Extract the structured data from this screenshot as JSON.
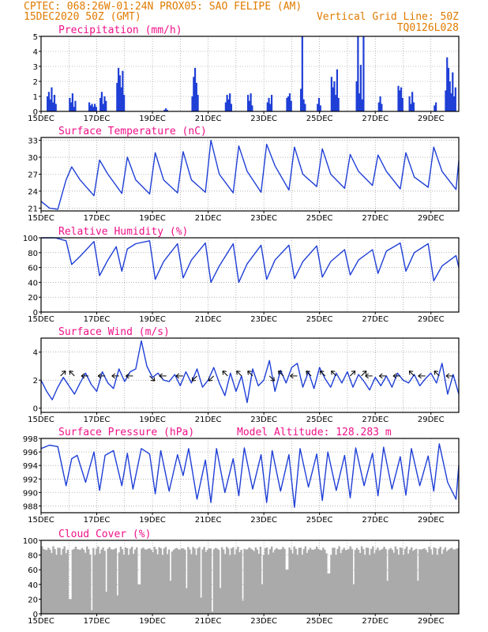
{
  "header": {
    "line1": "CPTEC:   068:26W-01:24N   PROX05: SAO FELIPE (AM)",
    "line2_left": "15DEC2020 50Z (GMT)",
    "line2_right": "Vertical Grid Line: 50Z",
    "line3_right": "TQ0126L028"
  },
  "colors": {
    "series": "#1f3fd6",
    "title": "#ee1188",
    "header": "#e07b00",
    "cloud": "#aaaaaa"
  },
  "chart_data": [
    {
      "type": "bar",
      "title": "Precipitation (mm/h)",
      "ylim": [
        0,
        5
      ],
      "yticks": [
        "0",
        "1",
        "2",
        "3",
        "4",
        "5"
      ],
      "xticks": [
        "15DEC",
        "17DEC",
        "19DEC",
        "21DEC",
        "23DEC",
        "25DEC",
        "27DEC",
        "29DEC"
      ],
      "x_range_days": [
        15,
        30
      ],
      "events": [
        {
          "day": 15.2,
          "values": [
            1.0,
            1.3,
            0.8,
            1.6,
            0.6,
            1.1,
            0.5
          ]
        },
        {
          "day": 16.0,
          "values": [
            0.9,
            0.6,
            1.2,
            0.3,
            0.7
          ]
        },
        {
          "day": 16.7,
          "values": [
            0.6,
            0.4,
            0.5,
            0.3,
            0.5,
            0.3
          ]
        },
        {
          "day": 17.1,
          "values": [
            0.9,
            1.3,
            0.5,
            1.0,
            0.7
          ]
        },
        {
          "day": 17.7,
          "values": [
            1.9,
            2.9,
            2.4,
            1.6,
            2.7,
            1.1
          ]
        },
        {
          "day": 19.4,
          "values": [
            0.1,
            0.2,
            0.1
          ]
        },
        {
          "day": 20.4,
          "values": [
            1.0,
            2.3,
            2.9,
            1.9,
            1.1
          ]
        },
        {
          "day": 21.6,
          "values": [
            0.6,
            1.1,
            0.8,
            1.2,
            0.5
          ]
        },
        {
          "day": 22.4,
          "values": [
            1.1,
            0.7,
            1.2,
            0.4
          ]
        },
        {
          "day": 23.1,
          "values": [
            0.6,
            0.9,
            0.5,
            1.1
          ]
        },
        {
          "day": 23.8,
          "values": [
            0.9,
            1.0,
            1.2,
            0.7
          ]
        },
        {
          "day": 24.3,
          "values": [
            1.5,
            5.0,
            0.8,
            0.5
          ]
        },
        {
          "day": 24.9,
          "values": [
            0.5,
            0.9,
            0.4
          ]
        },
        {
          "day": 25.4,
          "values": [
            2.3,
            1.6,
            2.0,
            1.1,
            2.8,
            0.9
          ]
        },
        {
          "day": 26.3,
          "values": [
            2.0,
            5.0,
            1.2,
            3.1,
            0.8,
            5.0
          ]
        },
        {
          "day": 27.1,
          "values": [
            0.6,
            1.0,
            0.5
          ]
        },
        {
          "day": 27.8,
          "values": [
            1.7,
            1.4,
            1.6,
            0.9
          ]
        },
        {
          "day": 28.2,
          "values": [
            1.0,
            0.5,
            1.3,
            0.6
          ]
        },
        {
          "day": 29.1,
          "values": [
            0.4,
            0.6
          ]
        },
        {
          "day": 29.5,
          "values": [
            1.4,
            3.6,
            2.9,
            2.0,
            1.2,
            2.6,
            1.0,
            1.6
          ]
        }
      ]
    },
    {
      "type": "line",
      "title": "Surface Temperature (nC)",
      "ylim": [
        20.5,
        33.5
      ],
      "yticks": [
        "21",
        "24",
        "27",
        "30",
        "33"
      ],
      "xticks": [
        "15DEC",
        "17DEC",
        "19DEC",
        "21DEC",
        "23DEC",
        "25DEC",
        "27DEC",
        "29DEC"
      ],
      "x_range_days": [
        15,
        30
      ],
      "series": [
        {
          "days": [
            15,
            15.3,
            15.6,
            15.9,
            16.1,
            16.4,
            16.9,
            17.1,
            17.4,
            17.9,
            18.1,
            18.4,
            18.9,
            19.1,
            19.4,
            19.9,
            20.1,
            20.4,
            20.9,
            21.1,
            21.4,
            21.9,
            22.1,
            22.4,
            22.9,
            23.1,
            23.4,
            23.9,
            24.1,
            24.4,
            24.9,
            25.1,
            25.4,
            25.9,
            26.1,
            26.4,
            26.9,
            27.1,
            27.4,
            27.9,
            28.1,
            28.4,
            28.9,
            29.1,
            29.4,
            29.9,
            30
          ],
          "values": [
            22.2,
            21,
            20.8,
            26,
            28.3,
            26,
            23.2,
            29.5,
            27,
            23.6,
            30,
            26,
            23.5,
            30.8,
            26,
            23.7,
            31,
            26,
            23.8,
            33,
            27,
            23.7,
            32,
            27.5,
            23.8,
            32.3,
            28.5,
            24.2,
            31.8,
            27,
            24.8,
            31.5,
            27,
            24.5,
            30.5,
            27.5,
            25,
            30.4,
            27.5,
            24.4,
            30.8,
            26.5,
            24.7,
            31.8,
            27.5,
            24.3,
            29.4
          ]
        }
      ]
    },
    {
      "type": "line",
      "title": "Relative Humidity (%)",
      "ylim": [
        0,
        100
      ],
      "yticks": [
        "0",
        "20",
        "40",
        "60",
        "80",
        "100"
      ],
      "xticks": [
        "15DEC",
        "17DEC",
        "19DEC",
        "21DEC",
        "23DEC",
        "25DEC",
        "27DEC",
        "29DEC"
      ],
      "x_range_days": [
        15,
        30
      ],
      "series": [
        {
          "days": [
            15,
            15.5,
            15.9,
            16.1,
            16.4,
            16.9,
            17.1,
            17.4,
            17.7,
            17.9,
            18.1,
            18.4,
            18.9,
            19.1,
            19.4,
            19.9,
            20.1,
            20.4,
            20.9,
            21.1,
            21.4,
            21.9,
            22.1,
            22.4,
            22.9,
            23.1,
            23.4,
            23.9,
            24.1,
            24.4,
            24.9,
            25.1,
            25.4,
            25.9,
            26.1,
            26.4,
            26.9,
            27.1,
            27.4,
            27.9,
            28.1,
            28.4,
            28.9,
            29.1,
            29.4,
            29.9,
            30
          ],
          "values": [
            100,
            100,
            96,
            64,
            75,
            95,
            49,
            70,
            88,
            55,
            85,
            92,
            96,
            44,
            68,
            92,
            46,
            70,
            93,
            40,
            62,
            92,
            40,
            65,
            90,
            44,
            70,
            90,
            45,
            68,
            89,
            47,
            68,
            84,
            50,
            70,
            84,
            52,
            82,
            93,
            55,
            80,
            92,
            42,
            62,
            76,
            60
          ]
        }
      ]
    },
    {
      "type": "line",
      "title": "Surface Wind (m/s)",
      "ylim": [
        -0.3,
        5
      ],
      "yticks": [
        "0",
        "2",
        "4"
      ],
      "xticks": [
        "15DEC",
        "17DEC",
        "19DEC",
        "21DEC",
        "23DEC",
        "25DEC",
        "27DEC",
        "29DEC"
      ],
      "x_range_days": [
        15,
        30
      ],
      "series": [
        {
          "days": [
            15,
            15.2,
            15.4,
            15.6,
            15.8,
            16.0,
            16.2,
            16.4,
            16.6,
            16.8,
            17.0,
            17.2,
            17.4,
            17.6,
            17.8,
            18.0,
            18.2,
            18.4,
            18.6,
            18.8,
            19.0,
            19.2,
            19.4,
            19.6,
            19.8,
            20.0,
            20.2,
            20.4,
            20.6,
            20.8,
            21.0,
            21.2,
            21.4,
            21.6,
            21.8,
            22.0,
            22.2,
            22.4,
            22.6,
            22.8,
            23.0,
            23.2,
            23.4,
            23.6,
            23.8,
            24.0,
            24.2,
            24.4,
            24.6,
            24.8,
            25.0,
            25.2,
            25.4,
            25.6,
            25.8,
            26.0,
            26.2,
            26.4,
            26.6,
            26.8,
            27.0,
            27.2,
            27.4,
            27.6,
            27.8,
            28.0,
            28.2,
            28.4,
            28.6,
            28.8,
            29.0,
            29.2,
            29.4,
            29.6,
            29.8,
            30
          ],
          "values": [
            2,
            1.2,
            0.6,
            1.5,
            2.2,
            1.6,
            1.0,
            1.8,
            2.5,
            1.7,
            1.2,
            2.6,
            1.8,
            1.4,
            2.8,
            1.9,
            2.6,
            2.8,
            4.8,
            3.0,
            2.2,
            2.5,
            2.0,
            1.9,
            2.4,
            1.6,
            2.6,
            1.8,
            2.8,
            1.5,
            2.0,
            2.9,
            1.8,
            0.9,
            2.5,
            1.2,
            2.3,
            0.4,
            2.8,
            1.6,
            2.0,
            3.4,
            1.2,
            2.7,
            1.8,
            2.9,
            3.2,
            1.5,
            2.6,
            1.4,
            2.9,
            2.1,
            1.5,
            2.5,
            1.8,
            2.6,
            1.5,
            2.4,
            1.9,
            1.3,
            2.2,
            1.6,
            2.3,
            1.5,
            2.5,
            2.0,
            1.8,
            2.4,
            1.6,
            2.1,
            2.5,
            1.8,
            3.2,
            1.0,
            2.4,
            1.0
          ]
        }
      ],
      "arrows": [
        {
          "day": 15.7,
          "dir": "ne"
        },
        {
          "day": 16.2,
          "dir": "nw"
        },
        {
          "day": 16.7,
          "dir": "w"
        },
        {
          "day": 17.3,
          "dir": "w"
        },
        {
          "day": 17.8,
          "dir": "w"
        },
        {
          "day": 18.3,
          "dir": "w"
        },
        {
          "day": 18.9,
          "dir": "se"
        },
        {
          "day": 19.5,
          "dir": "w"
        },
        {
          "day": 20.1,
          "dir": "w"
        },
        {
          "day": 20.6,
          "dir": "sw"
        },
        {
          "day": 21.2,
          "dir": "sw"
        },
        {
          "day": 21.7,
          "dir": "nw"
        },
        {
          "day": 22.2,
          "dir": "nw"
        },
        {
          "day": 22.6,
          "dir": "nw"
        },
        {
          "day": 23.2,
          "dir": "se"
        },
        {
          "day": 23.7,
          "dir": "nw"
        },
        {
          "day": 24.2,
          "dir": "w"
        },
        {
          "day": 24.7,
          "dir": "nw"
        },
        {
          "day": 25.2,
          "dir": "nw"
        },
        {
          "day": 25.6,
          "dir": "nw"
        },
        {
          "day": 26.1,
          "dir": "ne"
        },
        {
          "day": 26.5,
          "dir": "ne"
        },
        {
          "day": 26.9,
          "dir": "w"
        },
        {
          "day": 27.4,
          "dir": "w"
        },
        {
          "day": 27.9,
          "dir": "w"
        },
        {
          "day": 28.4,
          "dir": "nw"
        },
        {
          "day": 28.8,
          "dir": "w"
        },
        {
          "day": 29.3,
          "dir": "nw"
        },
        {
          "day": 29.8,
          "dir": "w"
        }
      ]
    },
    {
      "type": "line",
      "title": "Surface Pressure (hPa)",
      "annotation": "Model Altitude: 128.283 m",
      "ylim": [
        987,
        998
      ],
      "yticks": [
        "988",
        "990",
        "992",
        "994",
        "996",
        "998"
      ],
      "xticks": [
        "15DEC",
        "17DEC",
        "19DEC",
        "21DEC",
        "23DEC",
        "25DEC",
        "27DEC",
        "29DEC"
      ],
      "x_range_days": [
        15,
        30
      ],
      "series": [
        {
          "days": [
            15,
            15.3,
            15.6,
            15.9,
            16.1,
            16.3,
            16.6,
            16.9,
            17.1,
            17.3,
            17.6,
            17.9,
            18.1,
            18.3,
            18.6,
            18.9,
            19.1,
            19.3,
            19.6,
            19.9,
            20.1,
            20.3,
            20.6,
            20.9,
            21.1,
            21.3,
            21.6,
            21.9,
            22.1,
            22.3,
            22.6,
            22.9,
            23.1,
            23.3,
            23.6,
            23.9,
            24.1,
            24.3,
            24.6,
            24.9,
            25.1,
            25.3,
            25.6,
            25.9,
            26.1,
            26.3,
            26.6,
            26.9,
            27.1,
            27.3,
            27.6,
            27.9,
            28.1,
            28.3,
            28.6,
            28.9,
            29.1,
            29.3,
            29.6,
            29.9,
            30
          ],
          "values": [
            996.5,
            997,
            996.8,
            991,
            995,
            995.5,
            991.5,
            996,
            990.3,
            995.5,
            996.2,
            991,
            995.8,
            990.5,
            996.5,
            995.7,
            989.8,
            996.2,
            990.2,
            995.6,
            992.5,
            996.5,
            989,
            994.8,
            988.5,
            996.5,
            990,
            995,
            989.5,
            996.6,
            990.5,
            995.6,
            988.5,
            996.2,
            990.2,
            995.6,
            987.8,
            996.5,
            990.8,
            995.7,
            988.8,
            996,
            990.3,
            995.5,
            989.2,
            996.6,
            991,
            995.8,
            989.5,
            996.7,
            990.5,
            995.3,
            989.6,
            996.5,
            991,
            995.4,
            990.2,
            997.2,
            991.5,
            989,
            994
          ]
        }
      ]
    },
    {
      "type": "area",
      "title": "Cloud Cover (%)",
      "ylim": [
        0,
        100
      ],
      "yticks": [
        "0",
        "20",
        "40",
        "60",
        "80",
        "100"
      ],
      "xticks": [
        "15DEC",
        "17DEC",
        "19DEC",
        "21DEC",
        "23DEC",
        "25DEC",
        "27DEC",
        "29DEC"
      ],
      "x_range_days": [
        15,
        30
      ],
      "dips": [
        [
          16.0,
          20
        ],
        [
          16.8,
          5
        ],
        [
          17.3,
          30
        ],
        [
          17.7,
          25
        ],
        [
          18.5,
          40
        ],
        [
          19.6,
          45
        ],
        [
          20.2,
          35
        ],
        [
          20.7,
          22
        ],
        [
          21.1,
          3
        ],
        [
          21.4,
          35
        ],
        [
          22.2,
          18
        ],
        [
          22.9,
          40
        ],
        [
          23.8,
          60
        ],
        [
          25.3,
          55
        ],
        [
          26.2,
          40
        ],
        [
          27.4,
          45
        ],
        [
          28.5,
          45
        ]
      ],
      "base_level": 92
    }
  ]
}
